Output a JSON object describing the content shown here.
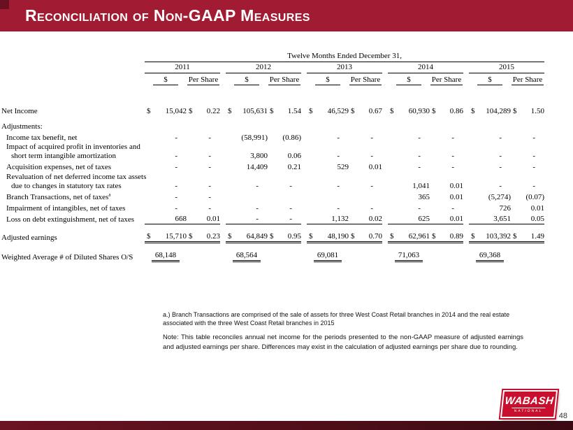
{
  "slide": {
    "title": "Reconciliation of Non-GAAP Measures",
    "page_number": "48"
  },
  "colors": {
    "accent": "#A11C33",
    "accent_dark": "#6B1020",
    "logo_red": "#C8102E"
  },
  "logo": {
    "line1": "WABASH",
    "line2": "NATIONAL"
  },
  "table": {
    "period_header": "Twelve Months Ended December 31,",
    "years": [
      "2011",
      "2012",
      "2013",
      "2014",
      "2015"
    ],
    "subheaders": [
      "$",
      "Per Share"
    ],
    "rows": [
      {
        "type": "first",
        "label": "Net Income",
        "indent": 0,
        "cells": [
          "$ 15,042",
          "$ 0.22",
          "$ 105,631",
          "$ 1.54",
          "$ 46,529",
          "$ 0.67",
          "$ 60,930",
          "$ 0.86",
          "$ 104,289",
          "$ 1.50"
        ]
      },
      {
        "type": "section",
        "label": "Adjustments:",
        "indent": 0
      },
      {
        "type": "data",
        "label": "Income tax benefit, net",
        "indent": 1,
        "cells": [
          "-",
          "-",
          "(58,991)",
          "(0.86)",
          "-",
          "-",
          "-",
          "-",
          "-",
          "-"
        ]
      },
      {
        "type": "data",
        "label": "Impact of acquired profit in inventories and",
        "label2": "short term intangible amortization",
        "indent": 1,
        "cells": [
          "-",
          "-",
          "3,800",
          "0.06",
          "-",
          "-",
          "-",
          "-",
          "-",
          "-"
        ]
      },
      {
        "type": "data",
        "label": "Acquisition expenses, net of taxes",
        "indent": 1,
        "cells": [
          "-",
          "-",
          "14,409",
          "0.21",
          "529",
          "0.01",
          "-",
          "-",
          "-",
          "-"
        ]
      },
      {
        "type": "data",
        "label": "Revaluation of net deferred income tax assets",
        "label2": "due to changes in statutory tax rates",
        "indent": 1,
        "cells": [
          "-",
          "-",
          "-",
          "-",
          "-",
          "-",
          "1,041",
          "0.01",
          "-",
          "-"
        ]
      },
      {
        "type": "data",
        "label": "Branch Transactions, net of taxes",
        "sup": "a",
        "indent": 1,
        "cells": [
          "-",
          "-",
          "",
          "",
          "",
          "",
          "365",
          "0.01",
          "(5,274)",
          "(0.07)"
        ]
      },
      {
        "type": "data",
        "label": "Impairment of intangibles, net of taxes",
        "indent": 1,
        "cells": [
          "-",
          "-",
          "-",
          "-",
          "-",
          "-",
          "-",
          "-",
          "726",
          "0.01"
        ]
      },
      {
        "type": "data",
        "label": "Loss on debt extinguishment, net of taxes",
        "indent": 1,
        "cells": [
          "668",
          "0.01",
          "-",
          "-",
          "1,132",
          "0.02",
          "625",
          "0.01",
          "3,651",
          "0.05"
        ]
      },
      {
        "type": "total",
        "label": "Adjusted earnings",
        "indent": 0,
        "cells": [
          "$ 15,710",
          "$ 0.23",
          "$ 64,849",
          "$ 0.95",
          "$ 48,190",
          "$ 0.70",
          "$ 62,961",
          "$ 0.89",
          "$ 103,392",
          "$ 1.49"
        ]
      },
      {
        "type": "shares",
        "label": "Weighted Average # of Diluted Shares O/S",
        "indent": 0,
        "cells": [
          "68,148",
          "68,564",
          "69,081",
          "71,063",
          "69,368"
        ]
      }
    ]
  },
  "footnote_a": "a.) Branch Transactions are comprised of the sale of assets for three West Coast Retail branches in 2014 and the real estate associated with the three West Coast Retail branches in 2015",
  "note": "Note:  This table reconciles annual net income for the periods presented to the non-GAAP measure of adjusted earnings and adjusted earnings per share.  Differences may exist in the calculation of adjusted earnings per share due to rounding."
}
